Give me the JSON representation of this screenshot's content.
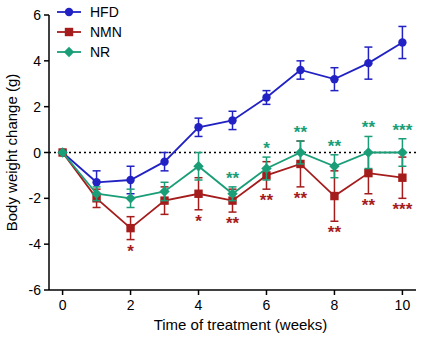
{
  "chart_data": {
    "type": "line",
    "x_label": "Time of treatment (weeks)",
    "y_label": "Body weight change (g)",
    "x": [
      0,
      1,
      2,
      3,
      4,
      5,
      6,
      7,
      8,
      9,
      10
    ],
    "xlim": [
      -0.4,
      10.4
    ],
    "xticks": [
      0,
      2,
      4,
      6,
      8,
      10
    ],
    "ylim": [
      -6,
      6
    ],
    "yticks": [
      -6,
      -4,
      -2,
      0,
      2,
      4,
      6
    ],
    "grid": false,
    "legend": "top-left",
    "series": [
      {
        "name": "HFD",
        "color": "#2222c4",
        "marker": "circle",
        "line_style": "solid",
        "values": [
          0,
          -1.3,
          -1.2,
          -0.4,
          1.1,
          1.4,
          2.4,
          3.6,
          3.2,
          3.9,
          4.8
        ],
        "errors": [
          0,
          0.5,
          0.6,
          0.4,
          0.4,
          0.4,
          0.3,
          0.4,
          0.5,
          0.7,
          0.7
        ],
        "significance": [
          null,
          null,
          null,
          null,
          null,
          null,
          null,
          null,
          null,
          null,
          null
        ]
      },
      {
        "name": "NMN",
        "color": "#a51c1c",
        "marker": "square",
        "line_style": "solid",
        "values": [
          0,
          -2.0,
          -3.3,
          -2.1,
          -1.8,
          -2.1,
          -1.0,
          -0.5,
          -1.9,
          -0.9,
          -1.1
        ],
        "errors": [
          0,
          0.4,
          0.5,
          0.6,
          0.7,
          0.5,
          0.6,
          1.0,
          1.1,
          0.9,
          0.9
        ],
        "significance": [
          null,
          null,
          "*",
          null,
          "*",
          "**",
          "**",
          "**",
          "**",
          "**",
          "***"
        ]
      },
      {
        "name": "NR",
        "color": "#1a9e78",
        "marker": "diamond",
        "line_style": "solid",
        "values": [
          0,
          -1.8,
          -2.0,
          -1.7,
          -0.6,
          -1.8,
          -0.7,
          0.0,
          -0.6,
          0.0,
          0.0
        ],
        "errors": [
          0,
          0.3,
          0.4,
          0.4,
          0.6,
          0.3,
          0.5,
          0.5,
          0.5,
          0.7,
          0.6
        ],
        "significance": [
          null,
          null,
          null,
          null,
          null,
          "**",
          "*",
          "**",
          "**",
          "**",
          "***"
        ]
      }
    ]
  }
}
